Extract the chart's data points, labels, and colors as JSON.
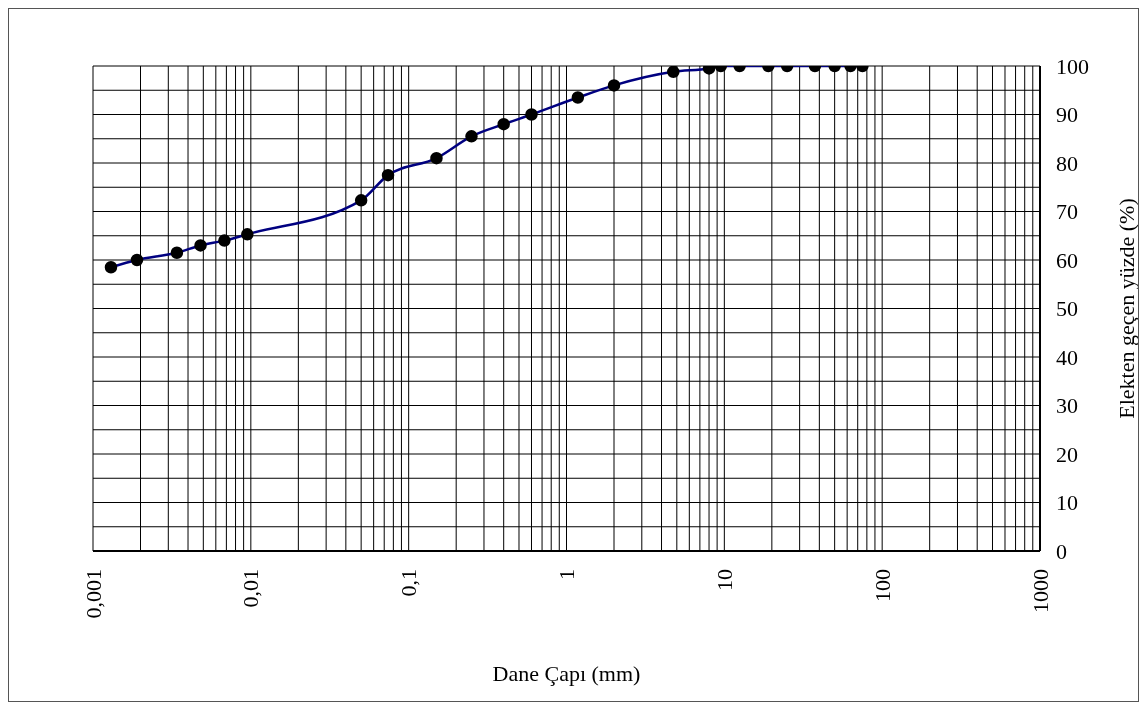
{
  "chart_data": {
    "type": "line",
    "xlabel": "Dane Çapı (mm)",
    "ylabel": "Elekten geçen yüzde (%)",
    "log": "x",
    "grid": true,
    "marker": "circle",
    "line_style": "solid",
    "xlim": [
      0.001,
      1000
    ],
    "ylim": [
      0,
      100
    ],
    "xticks": [
      {
        "value": 0.001,
        "label": "0,001"
      },
      {
        "value": 0.002,
        "label": null
      },
      {
        "value": 0.003,
        "label": null
      },
      {
        "value": 0.004,
        "label": null
      },
      {
        "value": 0.005,
        "label": null
      },
      {
        "value": 0.006,
        "label": null
      },
      {
        "value": 0.007,
        "label": null
      },
      {
        "value": 0.008,
        "label": null
      },
      {
        "value": 0.009,
        "label": null
      },
      {
        "value": 0.01,
        "label": "0,01"
      },
      {
        "value": 0.02,
        "label": null
      },
      {
        "value": 0.03,
        "label": null
      },
      {
        "value": 0.04,
        "label": null
      },
      {
        "value": 0.05,
        "label": null
      },
      {
        "value": 0.06,
        "label": null
      },
      {
        "value": 0.07,
        "label": null
      },
      {
        "value": 0.08,
        "label": null
      },
      {
        "value": 0.09,
        "label": null
      },
      {
        "value": 0.1,
        "label": "0,1"
      },
      {
        "value": 0.2,
        "label": null
      },
      {
        "value": 0.3,
        "label": null
      },
      {
        "value": 0.4,
        "label": null
      },
      {
        "value": 0.5,
        "label": null
      },
      {
        "value": 0.6,
        "label": null
      },
      {
        "value": 0.7,
        "label": null
      },
      {
        "value": 0.8,
        "label": null
      },
      {
        "value": 0.9,
        "label": null
      },
      1,
      {
        "value": 2,
        "label": null
      },
      {
        "value": 3,
        "label": null
      },
      {
        "value": 4,
        "label": null
      },
      {
        "value": 5,
        "label": null
      },
      {
        "value": 6,
        "label": null
      },
      {
        "value": 7,
        "label": null
      },
      {
        "value": 8,
        "label": null
      },
      {
        "value": 9,
        "label": null
      },
      10,
      {
        "value": 20,
        "label": null
      },
      {
        "value": 30,
        "label": null
      },
      {
        "value": 40,
        "label": null
      },
      {
        "value": 50,
        "label": null
      },
      {
        "value": 60,
        "label": null
      },
      {
        "value": 70,
        "label": null
      },
      {
        "value": 80,
        "label": null
      },
      {
        "value": 90,
        "label": null
      },
      100,
      {
        "value": 200,
        "label": null
      },
      {
        "value": 300,
        "label": null
      },
      {
        "value": 400,
        "label": null
      },
      {
        "value": 500,
        "label": null
      },
      {
        "value": 600,
        "label": null
      },
      {
        "value": 700,
        "label": null
      },
      {
        "value": 800,
        "label": null
      },
      {
        "value": 900,
        "label": null
      },
      1000
    ],
    "yticks": [
      0,
      {
        "value": 5,
        "label": null
      },
      10,
      {
        "value": 15,
        "label": null
      },
      20,
      {
        "value": 25,
        "label": null
      },
      30,
      {
        "value": 35,
        "label": null
      },
      40,
      {
        "value": 45,
        "label": null
      },
      50,
      {
        "value": 55,
        "label": null
      },
      60,
      {
        "value": 65,
        "label": null
      },
      70,
      {
        "value": 75,
        "label": null
      },
      80,
      {
        "value": 85,
        "label": null
      },
      90,
      {
        "value": 95,
        "label": null
      },
      100
    ],
    "x": [
      0.0013,
      0.0019,
      0.0034,
      0.0048,
      0.0068,
      0.0095,
      0.05,
      0.074,
      0.15,
      0.25,
      0.4,
      0.6,
      1.18,
      2,
      4.75,
      8,
      9.5,
      12.5,
      19,
      25,
      37.5,
      50,
      63,
      75
    ],
    "series": [
      {
        "color": "#000080",
        "values": [
          58.5,
          60,
          61.5,
          63,
          64,
          65.3,
          72.3,
          77.5,
          81,
          85.5,
          88,
          90,
          93.5,
          96,
          98.8,
          99.5,
          100,
          100,
          100,
          100,
          100,
          100,
          100,
          100
        ]
      }
    ]
  }
}
